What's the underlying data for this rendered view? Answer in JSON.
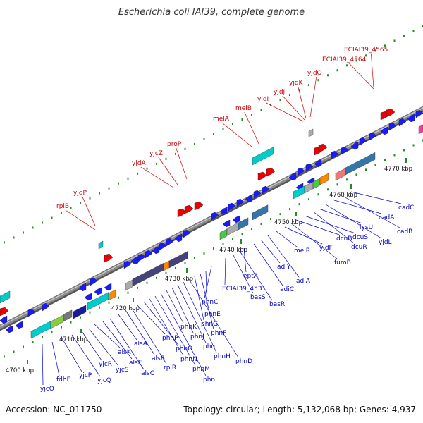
{
  "title": "Escherichia coli IAI39, complete genome",
  "footer": {
    "accession": "Accession: NC_011750",
    "summary": "Topology: circular; Length: 5,132,068 bp; Genes: 4,937"
  },
  "colors": {
    "backbone": "#8a8a8a",
    "forward": "#1a1aff",
    "reverse": "#ee0000",
    "rna": "#00cccc",
    "label_top": "#cc0000",
    "label_bottom": "#0000cc",
    "tick": "#2a8a2a"
  },
  "kbp_labels": [
    "4700 kbp",
    "4710 kbp",
    "4720 kbp",
    "4730 kbp",
    "4740 kbp",
    "4750 kbp",
    "4760 kbp",
    "4770 kbp"
  ],
  "top_genes": [
    "rpiB",
    "yjdP",
    "yjdA",
    "yjcZ",
    "proP",
    "melA",
    "melB",
    "yjdI",
    "yjdJ",
    "yjdK",
    "yjdO",
    "ECIAI39_4564",
    "ECIAI39_4565"
  ],
  "bottom_genes": [
    "yjcO",
    "fdhF",
    "yjcP",
    "yjcQ",
    "yjcR",
    "yjcS",
    "alsK",
    "alsE",
    "alsC",
    "alsA",
    "alsB",
    "rpiR",
    "phnP",
    "phnO",
    "phnN",
    "phnM",
    "phnL",
    "phnK",
    "phnJ",
    "phnI",
    "phnH",
    "phnD",
    "phnG",
    "phnF",
    "phnE",
    "phnC",
    "ECIAI39_4531",
    "basS",
    "basR",
    "eptA",
    "adiC",
    "adiY",
    "adiA",
    "melR",
    "yjdF",
    "fumB",
    "dcuB",
    "dcuS",
    "dcuR",
    "lysU",
    "yjdL",
    "cadA",
    "cadB",
    "cadC"
  ]
}
